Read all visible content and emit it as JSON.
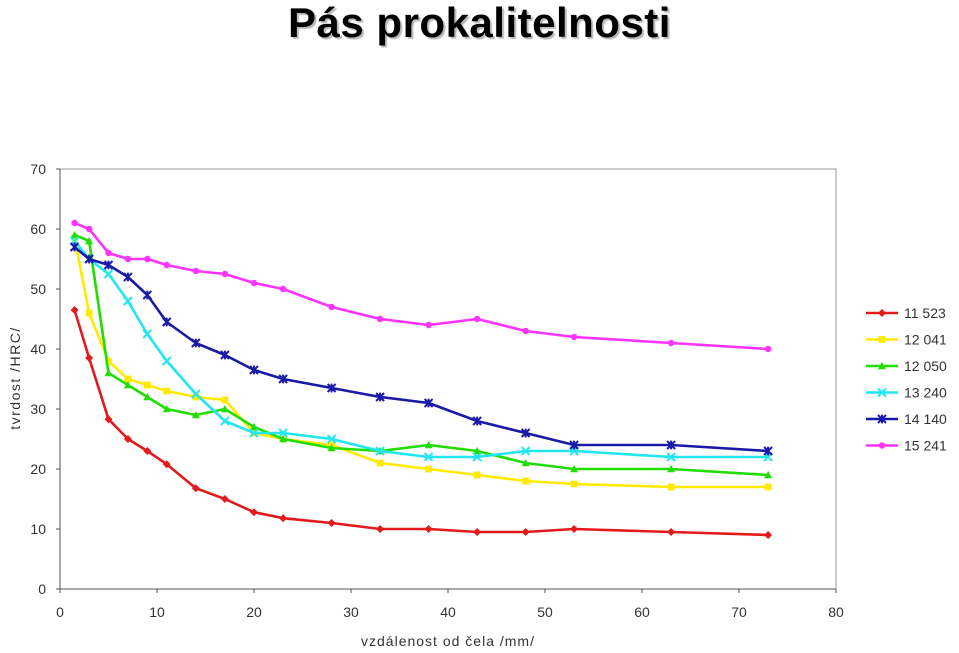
{
  "title": "Pás prokalitelnosti",
  "chart_data": {
    "type": "line",
    "xlabel": "vzdálenost od čela /mm/",
    "ylabel": "tvrdost /HRC/",
    "xlim": [
      0,
      80
    ],
    "ylim": [
      0,
      70
    ],
    "xticks": [
      0,
      10,
      20,
      30,
      40,
      50,
      60,
      70,
      80
    ],
    "yticks": [
      0,
      10,
      20,
      30,
      40,
      50,
      60,
      70
    ],
    "grid": false,
    "legend_position": "right",
    "series": [
      {
        "name": "11 523",
        "color": "#e31a1c",
        "marker": "diamond",
        "x": [
          1.5,
          3,
          5,
          7,
          9,
          11,
          14,
          17,
          20,
          23,
          28,
          33,
          38,
          43,
          48,
          53,
          63,
          73
        ],
        "y": [
          46.5,
          38.5,
          28.3,
          25,
          23,
          20.8,
          16.8,
          15,
          12.8,
          11.8,
          11,
          10,
          10,
          9.5,
          9.5,
          10,
          9.5,
          9
        ]
      },
      {
        "name": "12 041",
        "color": "#ffea00",
        "marker": "square",
        "x": [
          1.5,
          3,
          5,
          7,
          9,
          11,
          14,
          17,
          20,
          23,
          28,
          33,
          38,
          43,
          48,
          53,
          63,
          73
        ],
        "y": [
          58.5,
          46,
          38,
          35,
          34,
          33,
          32,
          31.5,
          26,
          25,
          24,
          21,
          20,
          19,
          18,
          17.5,
          17,
          17
        ]
      },
      {
        "name": "12 050",
        "color": "#22dd00",
        "marker": "triangle",
        "x": [
          1.5,
          3,
          5,
          7,
          9,
          11,
          14,
          17,
          20,
          23,
          28,
          33,
          38,
          43,
          48,
          53,
          63,
          73
        ],
        "y": [
          59,
          58,
          36,
          34,
          32,
          30,
          29,
          30,
          27,
          25,
          23.5,
          23,
          24,
          23,
          21,
          20,
          20,
          19
        ]
      },
      {
        "name": "13 240",
        "color": "#22e6f0",
        "marker": "x",
        "x": [
          1.5,
          3,
          5,
          7,
          9,
          11,
          14,
          17,
          20,
          23,
          28,
          33,
          38,
          43,
          48,
          53,
          63,
          73
        ],
        "y": [
          58,
          55,
          52.5,
          48,
          42.5,
          38,
          32.5,
          28,
          26,
          26,
          25,
          23,
          22,
          22,
          23,
          23,
          22,
          22
        ]
      },
      {
        "name": "14 140",
        "color": "#1a1aa8",
        "marker": "star",
        "x": [
          1.5,
          3,
          5,
          7,
          9,
          11,
          14,
          17,
          20,
          23,
          28,
          33,
          38,
          43,
          48,
          53,
          63,
          73
        ],
        "y": [
          57,
          55,
          54,
          52,
          49,
          44.5,
          41,
          39,
          36.5,
          35,
          33.5,
          32,
          31,
          28,
          26,
          24,
          24,
          23
        ]
      },
      {
        "name": "15 241",
        "color": "#ff33ff",
        "marker": "circle",
        "x": [
          1.5,
          3,
          5,
          7,
          9,
          11,
          14,
          17,
          20,
          23,
          28,
          33,
          38,
          43,
          48,
          53,
          63,
          73
        ],
        "y": [
          61,
          60,
          56,
          55,
          55,
          54,
          53,
          52.5,
          51,
          50,
          47,
          45,
          44,
          45,
          43,
          42,
          41,
          40
        ]
      }
    ]
  }
}
